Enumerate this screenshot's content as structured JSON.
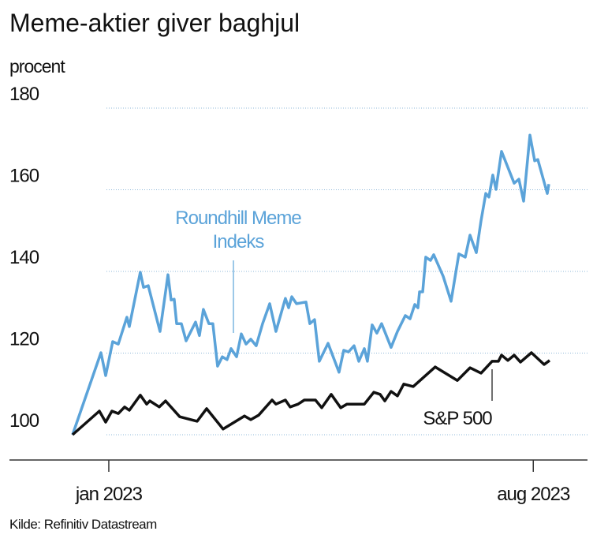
{
  "chart_data": {
    "type": "line",
    "title": "Meme-aktier giver baghjul",
    "y_label": "procent",
    "source": "Kilde: Refinitiv Datastream",
    "xlim": [
      2022.8635,
      2023.6578
    ],
    "xticks": [
      {
        "value": 2023,
        "label": "jan 2023"
      },
      {
        "value": 2023.5833,
        "label": "aug 2023"
      }
    ],
    "ylim": [
      94,
      183
    ],
    "yticks": [
      100,
      120,
      140,
      160,
      180
    ],
    "grid": true,
    "series": [
      {
        "name": [
          "Roundhill Meme",
          "Indeks"
        ],
        "color": "#5ba3d9",
        "x": [
          2022.9502,
          2022.9892,
          2022.9957,
          2023.0054,
          2023.013,
          2023.0249,
          2023.0282,
          2023.0433,
          2023.0477,
          2023.0542,
          2023.0704,
          2023.0813,
          2023.0856,
          2023.0899,
          2023.0932,
          2023.0997,
          2023.1062,
          2023.1192,
          2023.1246,
          2023.13,
          2023.1376,
          2023.143,
          2023.1495,
          2023.156,
          2023.1625,
          2023.168,
          2023.1756,
          2023.1821,
          2023.1886,
          2023.1951,
          2023.2026,
          2023.2113,
          2023.2211,
          2023.2297,
          2023.2427,
          2023.2471,
          2023.2514,
          2023.2579,
          2023.2709,
          2023.2763,
          2023.2828,
          2023.2893,
          2023.3013,
          2023.3164,
          2023.3229,
          2023.3294,
          2023.337,
          2023.3435,
          2023.3511,
          2023.3554,
          2023.3619,
          2023.3684,
          2023.3749,
          2023.3879,
          2023.3966,
          2023.4075,
          2023.414,
          2023.4205,
          2023.4248,
          2023.427,
          2023.4313,
          2023.4356,
          2023.4421,
          2023.4465,
          2023.4595,
          2023.4703,
          2023.4811,
          2023.4898,
          2023.4963,
          2023.505,
          2023.5115,
          2023.518,
          2023.5223,
          2023.5277,
          2023.5321,
          2023.5397,
          2023.557,
          2023.5635,
          2023.57,
          2023.5787,
          2023.5852,
          2023.5895,
          2023.6025,
          2023.6047
        ],
        "values": [
          100,
          120.1,
          114.5,
          122.8,
          122.2,
          128.8,
          126.5,
          139.8,
          136.1,
          136.5,
          125.3,
          139.2,
          133.0,
          133.2,
          127.2,
          127.2,
          123.0,
          127.6,
          124.3,
          130.7,
          127.2,
          127.2,
          116.8,
          119.1,
          118.4,
          121.1,
          119.1,
          124.7,
          122.2,
          123.4,
          121.8,
          127.2,
          132.1,
          125.3,
          133.4,
          131.1,
          133.8,
          132.1,
          132.5,
          127.2,
          128.2,
          118.0,
          122.4,
          115.3,
          120.7,
          120.3,
          121.8,
          118.0,
          121.1,
          118.0,
          126.9,
          124.9,
          127.2,
          121.4,
          125.3,
          129.2,
          128.4,
          131.9,
          131.1,
          135.0,
          135.0,
          143.5,
          142.7,
          144.1,
          138.8,
          132.7,
          144.3,
          143.5,
          148.9,
          144.6,
          152.4,
          159.1,
          158.2,
          163.6,
          160.1,
          169.4,
          161.6,
          162.6,
          157.2,
          173.4,
          167.1,
          167.4,
          159.1,
          161.4
        ]
      },
      {
        "name": [
          "S&P 500"
        ],
        "color": "#111111",
        "x": [
          2022.9502,
          2022.987,
          2022.9957,
          2023.0043,
          2023.013,
          2023.0217,
          2023.0282,
          2023.0433,
          2023.052,
          2023.0564,
          2023.0694,
          2023.078,
          2023.0975,
          2023.1214,
          2023.1344,
          2023.1571,
          2023.1864,
          2023.1951,
          2023.2059,
          2023.2243,
          2023.2297,
          2023.2427,
          2023.2492,
          2023.2601,
          2023.2687,
          2023.2839,
          2023.2926,
          2023.3056,
          2023.3186,
          2023.3273,
          2023.3511,
          2023.3641,
          2023.3728,
          2023.3793,
          2023.3879,
          2023.3966,
          2023.4053,
          2023.4183,
          2023.4486,
          2023.479,
          2023.4963,
          2023.5115,
          2023.5267,
          2023.5353,
          2023.5397,
          2023.5483,
          2023.557,
          2023.5657,
          2023.5808,
          2023.5982,
          2023.6058
        ],
        "values": [
          100,
          105.8,
          103.1,
          105.8,
          105.2,
          106.8,
          106.0,
          109.7,
          107.5,
          108.3,
          106.8,
          108.3,
          104.4,
          103.3,
          106.4,
          101.4,
          104.6,
          103.7,
          104.8,
          108.5,
          107.5,
          108.5,
          106.8,
          107.5,
          108.5,
          108.5,
          106.6,
          109.9,
          106.6,
          107.5,
          107.5,
          110.4,
          109.9,
          108.3,
          110.6,
          109.5,
          112.4,
          111.8,
          116.6,
          113.3,
          116.4,
          115.1,
          118.0,
          118.0,
          119.5,
          118.2,
          119.5,
          117.8,
          120.1,
          117.2,
          118.2
        ]
      }
    ]
  }
}
